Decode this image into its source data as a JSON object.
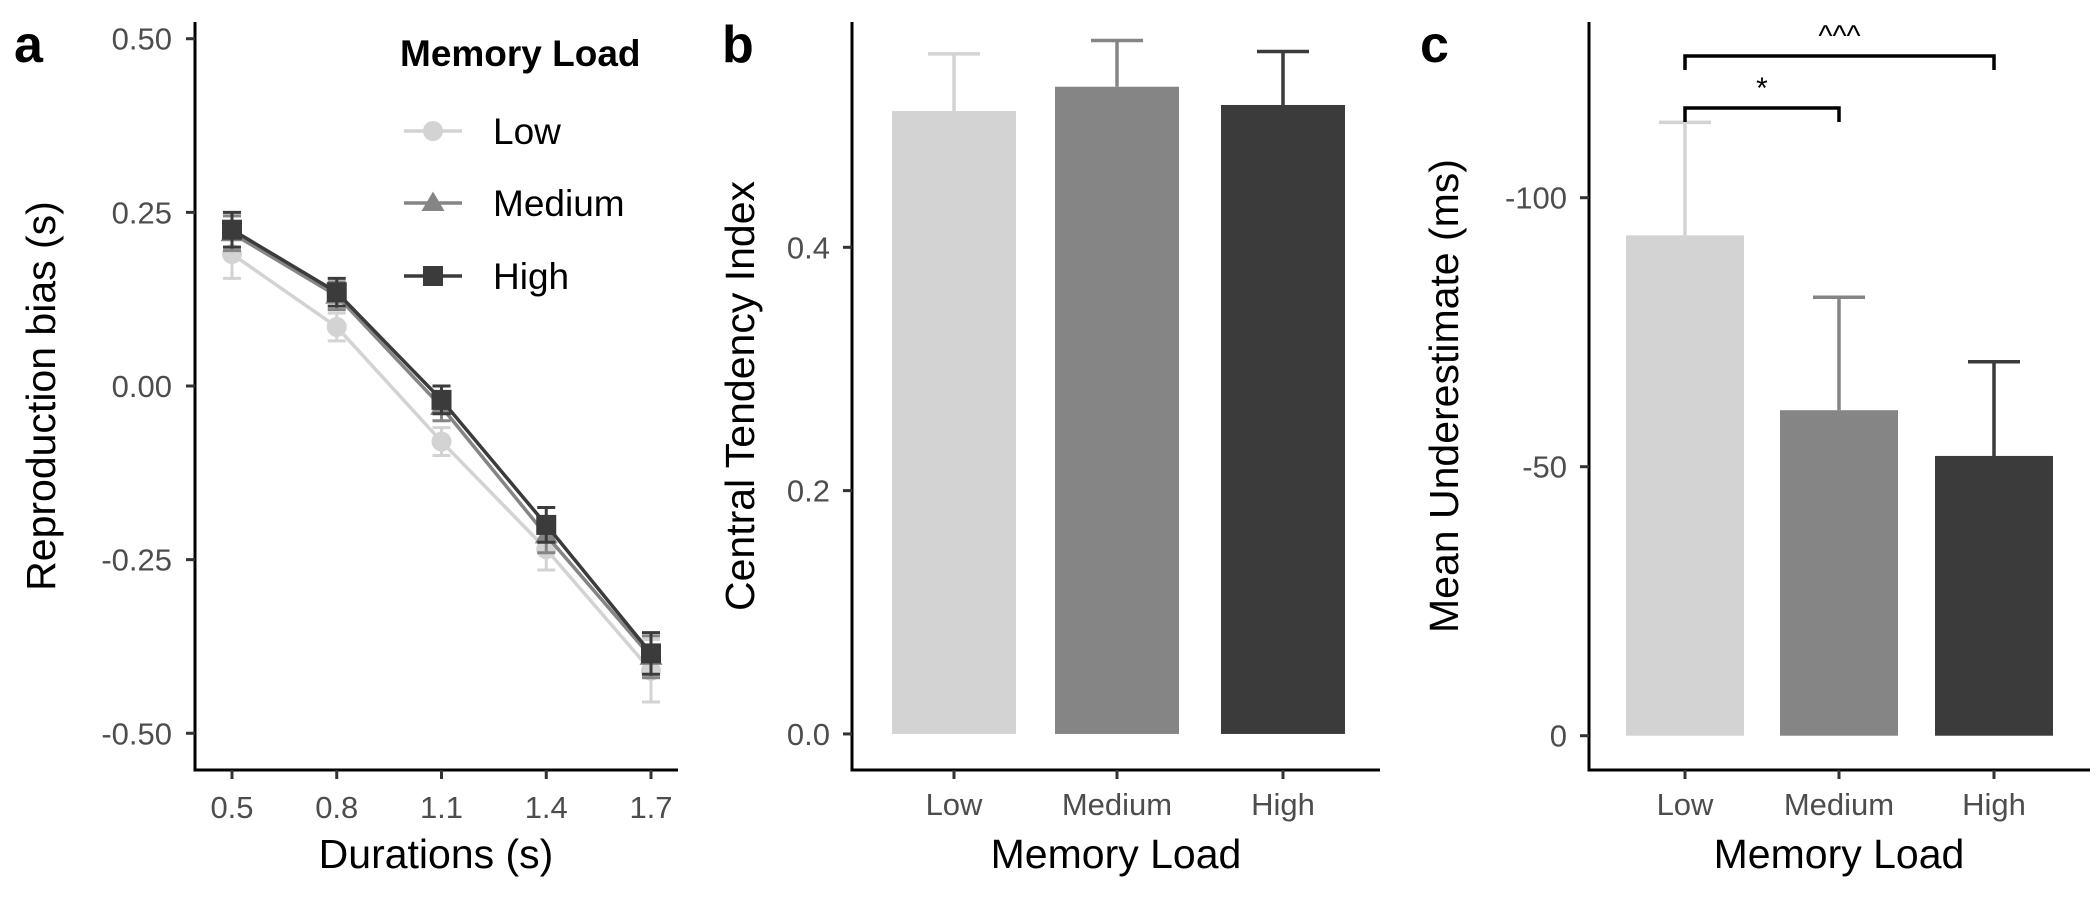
{
  "chart_data": [
    {
      "panel": "a",
      "type": "line",
      "xlabel": "Durations (s)",
      "ylabel": "Reproduction bias (s)",
      "x": [
        0.5,
        0.8,
        1.1,
        1.4,
        1.7
      ],
      "x_tick_labels": [
        "0.5",
        "0.8",
        "1.1",
        "1.4",
        "1.7"
      ],
      "ylim": [
        -0.55,
        0.55
      ],
      "y_ticks": [
        0.5,
        0.25,
        0.0,
        -0.25,
        -0.5
      ],
      "y_tick_labels": [
        "0.50",
        "0.25",
        "0.00",
        "-0.25",
        "-0.50"
      ],
      "grid": false,
      "legend": {
        "title": "Memory Load",
        "position": "top-right",
        "entries": [
          "Low",
          "Medium",
          "High"
        ]
      },
      "series": [
        {
          "name": "Low",
          "marker": "circle",
          "color": "#d3d3d3",
          "values": [
            0.19,
            0.085,
            -0.08,
            -0.235,
            -0.41
          ],
          "error": [
            0.035,
            0.02,
            0.02,
            0.03,
            0.045
          ]
        },
        {
          "name": "Medium",
          "marker": "triangle",
          "color": "#858585",
          "values": [
            0.22,
            0.13,
            -0.03,
            -0.215,
            -0.39
          ],
          "error": [
            0.025,
            0.02,
            0.02,
            0.025,
            0.03
          ]
        },
        {
          "name": "High",
          "marker": "square",
          "color": "#3b3b3b",
          "values": [
            0.225,
            0.135,
            -0.02,
            -0.2,
            -0.385
          ],
          "error": [
            0.025,
            0.02,
            0.02,
            0.025,
            0.03
          ]
        }
      ]
    },
    {
      "panel": "b",
      "type": "bar",
      "xlabel": "Memory Load",
      "ylabel": "Central Tendency Index",
      "categories": [
        "Low",
        "Medium",
        "High"
      ],
      "values": [
        0.512,
        0.532,
        0.517
      ],
      "error": [
        0.047,
        0.038,
        0.044
      ],
      "colors": [
        "#d3d3d3",
        "#858585",
        "#3b3b3b"
      ],
      "ylim": [
        -0.028,
        0.6
      ],
      "y_ticks": [
        0.0,
        0.2,
        0.4
      ],
      "y_tick_labels": [
        "0.0",
        "0.2",
        "0.4"
      ],
      "grid": false
    },
    {
      "panel": "c",
      "type": "bar",
      "xlabel": "Memory Load",
      "ylabel": "Mean Underestimate (ms)",
      "categories": [
        "Low",
        "Medium",
        "High"
      ],
      "values": [
        -93,
        -60.5,
        -52
      ],
      "error": [
        21,
        21,
        17.5
      ],
      "colors": [
        "#d3d3d3",
        "#858585",
        "#3b3b3b"
      ],
      "ylim": [
        6,
        -136
      ],
      "y_axis_reversed": true,
      "y_ticks": [
        -100,
        -50,
        0
      ],
      "y_tick_labels": [
        "-100",
        "-50",
        "0"
      ],
      "grid": false,
      "annotations": [
        {
          "from": "Low",
          "to": "Medium",
          "label": "*"
        },
        {
          "from": "Low",
          "to": "High",
          "label": "^^^"
        }
      ]
    }
  ]
}
